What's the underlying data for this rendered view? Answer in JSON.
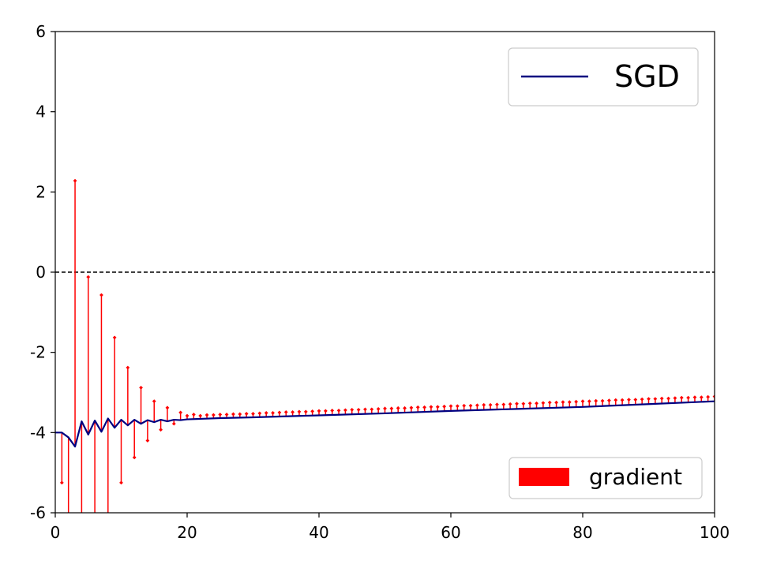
{
  "chart_data": {
    "type": "line",
    "title": "",
    "xlabel": "",
    "ylabel": "",
    "xlim": [
      0,
      100
    ],
    "ylim": [
      -6,
      6
    ],
    "x_ticks": [
      "0",
      "20",
      "40",
      "60",
      "80",
      "100"
    ],
    "y_ticks": [
      "6",
      "4",
      "2",
      "0",
      "-2",
      "-4",
      "-6"
    ],
    "grid": false,
    "reference_line": {
      "y": 0,
      "style": "dashed",
      "color": "#000000"
    },
    "legends": [
      {
        "label": "SGD",
        "kind": "line",
        "color": "#000080",
        "placement": "upper-right"
      },
      {
        "label": "gradient",
        "kind": "patch",
        "color": "#ff0000",
        "placement": "lower-right"
      }
    ],
    "series": [
      {
        "name": "SGD",
        "type": "line",
        "color": "#000080",
        "x": [
          0,
          1,
          2,
          3,
          4,
          5,
          6,
          7,
          8,
          9,
          10,
          11,
          12,
          13,
          14,
          15,
          16,
          17,
          18,
          19,
          20,
          25,
          30,
          40,
          50,
          60,
          70,
          80,
          90,
          100
        ],
        "values": [
          -4.0,
          -4.0,
          -4.12,
          -4.35,
          -3.72,
          -4.05,
          -3.7,
          -3.98,
          -3.65,
          -3.88,
          -3.68,
          -3.82,
          -3.68,
          -3.78,
          -3.69,
          -3.74,
          -3.68,
          -3.72,
          -3.68,
          -3.69,
          -3.67,
          -3.64,
          -3.62,
          -3.57,
          -3.52,
          -3.46,
          -3.41,
          -3.36,
          -3.29,
          -3.22
        ]
      },
      {
        "name": "gradient",
        "type": "stem",
        "color": "#ff0000",
        "x": [
          1,
          2,
          3,
          4,
          5,
          6,
          7,
          8,
          9,
          10,
          11,
          12,
          13,
          14,
          15,
          16,
          17,
          18,
          19,
          20,
          21,
          22,
          23,
          24,
          25,
          26,
          27,
          28,
          29,
          30,
          31,
          32,
          33,
          34,
          35,
          36,
          37,
          38,
          39,
          40,
          41,
          42,
          43,
          44,
          45,
          46,
          47,
          48,
          49,
          50,
          51,
          52,
          53,
          54,
          55,
          56,
          57,
          58,
          59,
          60,
          61,
          62,
          63,
          64,
          65,
          66,
          67,
          68,
          69,
          70,
          71,
          72,
          73,
          74,
          75,
          76,
          77,
          78,
          79,
          80,
          81,
          82,
          83,
          84,
          85,
          86,
          87,
          88,
          89,
          90,
          91,
          92,
          93,
          94,
          95,
          96,
          97,
          98,
          99,
          100
        ],
        "values": [
          -5.25,
          -7.5,
          2.28,
          -7.5,
          -0.12,
          -7.5,
          -0.57,
          -7.5,
          -1.63,
          -5.25,
          -2.38,
          -4.62,
          -2.88,
          -4.2,
          -3.22,
          -3.93,
          -3.38,
          -3.78,
          -3.5,
          -3.58,
          -3.55,
          -3.58,
          -3.56,
          -3.56,
          -3.55,
          -3.55,
          -3.54,
          -3.54,
          -3.53,
          -3.53,
          -3.52,
          -3.51,
          -3.51,
          -3.5,
          -3.49,
          -3.49,
          -3.48,
          -3.48,
          -3.47,
          -3.46,
          -3.46,
          -3.45,
          -3.45,
          -3.44,
          -3.43,
          -3.43,
          -3.42,
          -3.42,
          -3.41,
          -3.4,
          -3.4,
          -3.39,
          -3.39,
          -3.38,
          -3.37,
          -3.37,
          -3.36,
          -3.36,
          -3.35,
          -3.34,
          -3.34,
          -3.33,
          -3.33,
          -3.32,
          -3.31,
          -3.31,
          -3.3,
          -3.3,
          -3.29,
          -3.28,
          -3.28,
          -3.27,
          -3.27,
          -3.26,
          -3.25,
          -3.25,
          -3.24,
          -3.24,
          -3.23,
          -3.22,
          -3.22,
          -3.21,
          -3.21,
          -3.2,
          -3.19,
          -3.19,
          -3.18,
          -3.18,
          -3.17,
          -3.16,
          -3.16,
          -3.15,
          -3.15,
          -3.14,
          -3.13,
          -3.13,
          -3.12,
          -3.12,
          -3.11,
          -3.1
        ]
      }
    ]
  }
}
